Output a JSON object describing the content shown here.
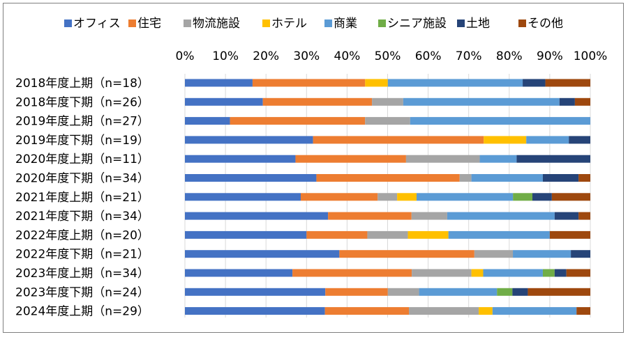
{
  "chart_data": {
    "type": "bar",
    "orientation": "horizontal",
    "stacked": "percent",
    "title": "",
    "xlabel": "",
    "ylabel": "",
    "xlim": [
      0,
      100
    ],
    "x_ticks": [
      "0%",
      "10%",
      "20%",
      "30%",
      "40%",
      "50%",
      "60%",
      "70%",
      "80%",
      "90%",
      "100%"
    ],
    "grid": "vertical",
    "legend_position": "top",
    "categories": [
      "2018年度上期（n=18）",
      "2018年度下期（n=26）",
      "2019年度上期（n=27）",
      "2019年度下期（n=19）",
      "2020年度上期（n=11）",
      "2020年度下期（n=34）",
      "2021年度上期（n=21）",
      "2021年度下期（n=34）",
      "2022年度上期（n=20）",
      "2022年度下期（n=21）",
      "2023年度上期（n=34）",
      "2023年度下期（n=24）",
      "2024年度上期（n=29）"
    ],
    "series": [
      {
        "name": "オフィス",
        "color": "#4472C4",
        "values": [
          16.7,
          19.2,
          11.1,
          31.6,
          27.3,
          32.4,
          28.6,
          35.3,
          30.0,
          38.1,
          26.5,
          34.6,
          34.5
        ]
      },
      {
        "name": "住宅",
        "color": "#ED7D31",
        "values": [
          27.8,
          26.9,
          33.3,
          42.1,
          27.3,
          35.3,
          19.0,
          20.6,
          15.0,
          33.3,
          29.4,
          15.4,
          20.7
        ]
      },
      {
        "name": "物流施設",
        "color": "#A5A5A5",
        "values": [
          0,
          7.7,
          11.1,
          0,
          18.2,
          2.9,
          4.8,
          8.8,
          10.0,
          9.5,
          14.7,
          7.7,
          17.2
        ]
      },
      {
        "name": "ホテル",
        "color": "#FFC000",
        "values": [
          5.6,
          0,
          0,
          10.5,
          0,
          0,
          4.8,
          0,
          10.0,
          0,
          2.9,
          0,
          3.4
        ]
      },
      {
        "name": "商業",
        "color": "#5B9BD5",
        "values": [
          33.3,
          38.5,
          44.4,
          10.5,
          9.1,
          17.6,
          23.8,
          26.5,
          25.0,
          14.3,
          14.7,
          19.2,
          20.7
        ]
      },
      {
        "name": "シニア施設",
        "color": "#70AD47",
        "values": [
          0,
          0,
          0,
          0,
          0,
          0,
          4.8,
          0,
          0,
          0,
          2.9,
          3.8,
          0
        ]
      },
      {
        "name": "土地",
        "color": "#264478",
        "values": [
          5.6,
          3.8,
          0,
          5.3,
          18.2,
          8.8,
          4.8,
          5.9,
          0,
          4.8,
          2.9,
          3.8,
          0
        ]
      },
      {
        "name": "その他",
        "color": "#9E480E",
        "values": [
          11.1,
          3.8,
          0,
          0,
          0,
          2.9,
          9.5,
          2.9,
          10.0,
          0,
          5.9,
          15.4,
          3.4
        ]
      }
    ]
  }
}
